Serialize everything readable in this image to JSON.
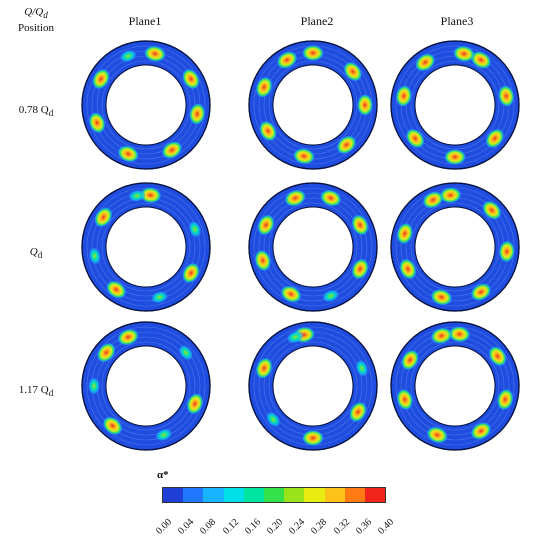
{
  "header": {
    "corner_top": "Q/Q",
    "corner_top_sub": "d",
    "corner_bottom": "Position",
    "columns": [
      {
        "label": "Plane1"
      },
      {
        "label": "Plane2"
      },
      {
        "label": "Plane3"
      }
    ]
  },
  "rows": [
    {
      "label": "0.78 Q",
      "sub": "d"
    },
    {
      "label": "Q",
      "sub": "d"
    },
    {
      "label": "1.17 Q",
      "sub": "d"
    }
  ],
  "colorbar": {
    "title": "α*",
    "ticks": [
      "0.00",
      "0.04",
      "0.08",
      "0.12",
      "0.16",
      "0.20",
      "0.24",
      "0.28",
      "0.32",
      "0.36",
      "0.40"
    ],
    "colors": [
      "#1f3fd6",
      "#1f78ff",
      "#19b4ff",
      "#00e0e8",
      "#00e6a0",
      "#33e24a",
      "#9ae21a",
      "#e8ec10",
      "#ffc21a",
      "#ff7a12",
      "#f0241a"
    ]
  },
  "colors": {
    "ring_base": "#1f4de0",
    "ring_dark": "#1233a8",
    "hot": "#e8321e"
  }
}
